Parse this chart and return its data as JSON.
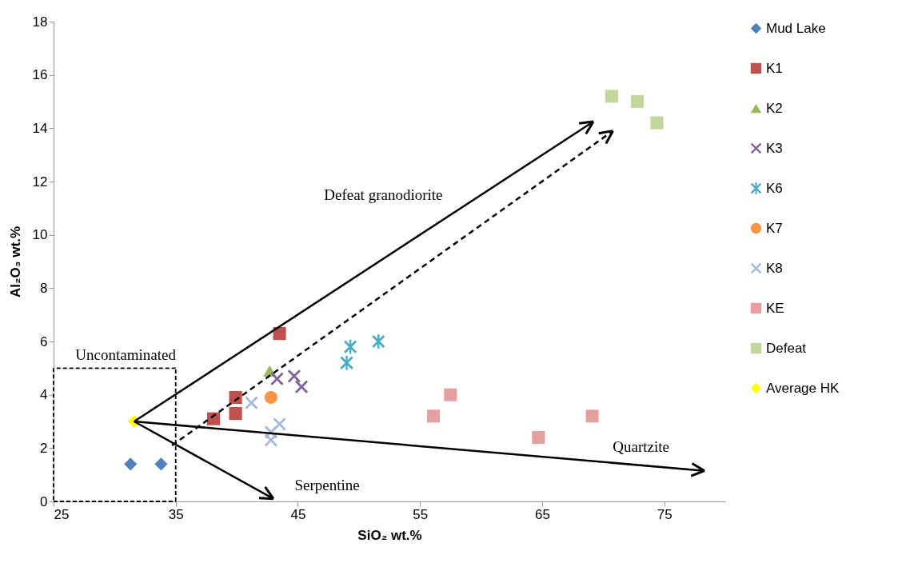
{
  "chart_data": {
    "type": "scatter",
    "xlabel": "SiO₂ wt.%",
    "ylabel": "Al₂O₃ wt.%",
    "xlim": [
      25,
      80
    ],
    "ylim": [
      0,
      18
    ],
    "xticks": [
      25,
      35,
      45,
      55,
      65,
      75
    ],
    "yticks": [
      0,
      2,
      4,
      6,
      8,
      10,
      12,
      14,
      16,
      18
    ],
    "grid": false,
    "legend": "right",
    "series": [
      {
        "name": "Mud Lake",
        "color": "#4f81bd",
        "marker": "diamond",
        "x": [
          31.3,
          33.8
        ],
        "values": [
          1.4,
          1.4
        ]
      },
      {
        "name": "K1",
        "color": "#c0504d",
        "marker": "square",
        "x": [
          43.5,
          39.9,
          39.9,
          38.1
        ],
        "values": [
          6.3,
          3.9,
          3.3,
          3.1
        ]
      },
      {
        "name": "K2",
        "color": "#9bbb59",
        "marker": "triangle",
        "x": [
          42.7
        ],
        "values": [
          4.9
        ]
      },
      {
        "name": "K3",
        "color": "#8064a2",
        "marker": "cross",
        "x": [
          43.3,
          44.7,
          45.3
        ],
        "values": [
          4.6,
          4.7,
          4.3
        ]
      },
      {
        "name": "K6",
        "color": "#4bacc6",
        "marker": "star",
        "x": [
          49.3,
          49.0,
          51.6
        ],
        "values": [
          5.8,
          5.2,
          6.0
        ]
      },
      {
        "name": "K7",
        "color": "#f79646",
        "marker": "circle",
        "x": [
          42.8
        ],
        "values": [
          3.9
        ]
      },
      {
        "name": "K8",
        "color": "#a5b9dc",
        "marker": "cross",
        "x": [
          41.2,
          43.5,
          42.8,
          42.8
        ],
        "values": [
          3.7,
          2.9,
          2.6,
          2.3
        ]
      },
      {
        "name": "KE",
        "color": "#e6a0a0",
        "marker": "square",
        "x": [
          57.5,
          56.1,
          64.7,
          69.1
        ],
        "values": [
          4.0,
          3.2,
          2.4,
          3.2
        ]
      },
      {
        "name": "Defeat",
        "color": "#c3d69b",
        "marker": "square",
        "x": [
          70.7,
          72.8,
          74.4
        ],
        "values": [
          15.2,
          15.0,
          14.2
        ]
      },
      {
        "name": "Average HK",
        "color": "#ffff00",
        "marker": "diamond",
        "x": [
          31.6
        ],
        "values": [
          3.0
        ]
      }
    ],
    "annotations": [
      "Uncontaminated",
      "Defeat granodiorite",
      "Quartzite",
      "Serpentine"
    ]
  }
}
